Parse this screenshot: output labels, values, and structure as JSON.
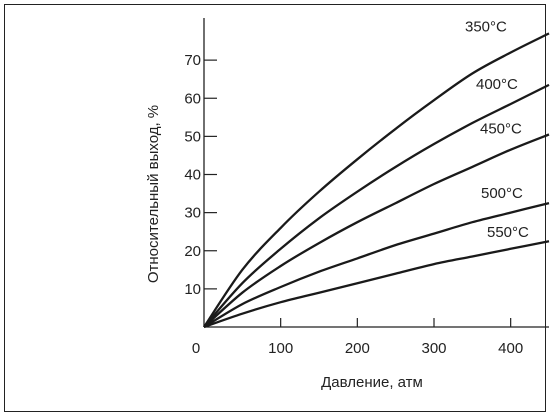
{
  "chart_data": {
    "type": "line",
    "xlabel": "Давление, атм",
    "ylabel": "Относительный выход, %",
    "xlim": [
      0,
      450
    ],
    "ylim": [
      0,
      80
    ],
    "x_ticks": [
      "0",
      "100",
      "200",
      "300",
      "400"
    ],
    "y_ticks": [
      "10",
      "20",
      "30",
      "40",
      "50",
      "60",
      "70"
    ],
    "x_tick_values": [
      0,
      100,
      200,
      300,
      400
    ],
    "y_tick_values": [
      10,
      20,
      30,
      40,
      50,
      60,
      70
    ],
    "x": [
      0,
      50,
      100,
      150,
      200,
      250,
      300,
      350,
      400,
      450
    ],
    "series": [
      {
        "name": "350°C",
        "values": [
          0,
          15.0,
          26.0,
          35.5,
          44.0,
          52.0,
          59.5,
          66.5,
          72.0,
          77.0
        ]
      },
      {
        "name": "400°C",
        "values": [
          0,
          11.5,
          20.5,
          28.5,
          35.5,
          42.0,
          48.0,
          53.5,
          58.5,
          63.5
        ]
      },
      {
        "name": "450°C",
        "values": [
          0,
          9.0,
          16.0,
          22.0,
          27.5,
          32.5,
          37.5,
          42.0,
          46.5,
          50.5
        ]
      },
      {
        "name": "500°C",
        "values": [
          0,
          6.0,
          10.5,
          14.5,
          18.0,
          21.5,
          24.5,
          27.5,
          30.0,
          32.5
        ]
      },
      {
        "name": "550°C",
        "values": [
          0,
          3.5,
          6.5,
          9.0,
          11.5,
          14.0,
          16.5,
          18.5,
          20.5,
          22.5
        ]
      }
    ]
  }
}
